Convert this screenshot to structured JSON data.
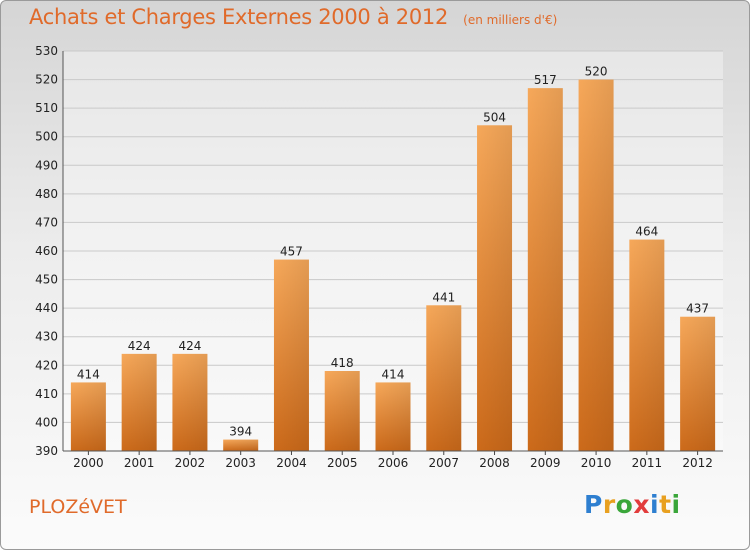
{
  "title": "Achats et Charges Externes 2000 à 2012",
  "subtitle": "(en milliers d'€)",
  "city": "PLOZéVET",
  "brand": {
    "letters": [
      "P",
      "r",
      "o",
      "x",
      "i",
      "t",
      "i"
    ],
    "colors": [
      "#2e7fd0",
      "#e8a020",
      "#3aa63a",
      "#e23c3c",
      "#2e7fd0",
      "#e8a020",
      "#3aa63a"
    ]
  },
  "colors": {
    "bar": "#f08a2c",
    "text": "#e06a2a"
  },
  "chart_data": {
    "type": "bar",
    "title": "Achats et Charges Externes 2000 à 2012",
    "subtitle": "(en milliers d'€)",
    "categories": [
      "2000",
      "2001",
      "2002",
      "2003",
      "2004",
      "2005",
      "2006",
      "2007",
      "2008",
      "2009",
      "2010",
      "2011",
      "2012"
    ],
    "values": [
      414,
      424,
      424,
      394,
      457,
      418,
      414,
      441,
      504,
      517,
      520,
      464,
      437
    ],
    "ylim": [
      390,
      530
    ],
    "yticks": [
      390,
      400,
      410,
      420,
      430,
      440,
      450,
      460,
      470,
      480,
      490,
      500,
      510,
      520,
      530
    ],
    "grid": true,
    "data_labels": true
  }
}
